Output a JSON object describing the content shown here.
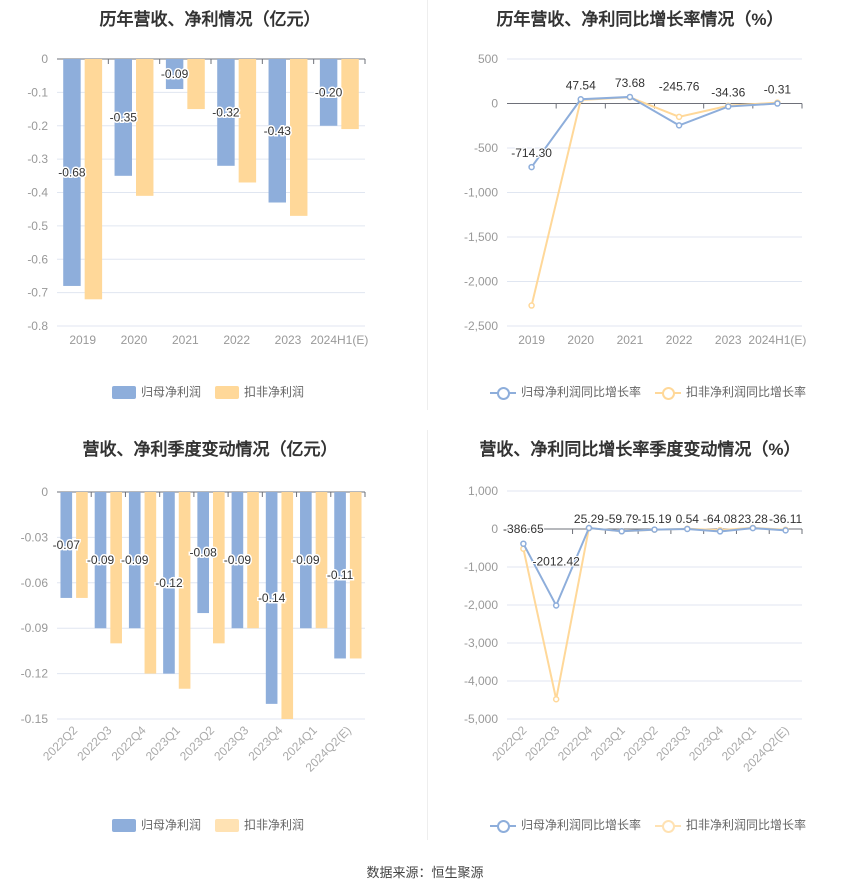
{
  "colors": {
    "blue": "#8eaedb",
    "orange": "#ffd899"
  },
  "footer": "数据来源：恒生聚源",
  "chart_data": [
    {
      "type": "bar",
      "title": "历年营收、净利情况（亿元）",
      "categories": [
        "2019",
        "2020",
        "2021",
        "2022",
        "2023",
        "2024H1(E)"
      ],
      "series": [
        {
          "name": "归母净利润",
          "values": [
            -0.68,
            -0.35,
            -0.09,
            -0.32,
            -0.43,
            -0.2
          ],
          "labels": [
            "-0.68",
            "-0.35",
            "-0.09",
            "-0.32",
            "-0.43",
            "-0.20"
          ]
        },
        {
          "name": "扣非净利润",
          "values": [
            -0.72,
            -0.41,
            -0.15,
            -0.37,
            -0.47,
            -0.21
          ]
        }
      ],
      "ylim": [
        -0.8,
        0
      ],
      "yticks": [
        "0",
        "-0.1",
        "-0.2",
        "-0.3",
        "-0.4",
        "-0.5",
        "-0.6",
        "-0.7",
        "-0.8"
      ],
      "legend": "bottom"
    },
    {
      "type": "line",
      "title": "历年营收、净利同比增长率情况（%）",
      "categories": [
        "2019",
        "2020",
        "2021",
        "2022",
        "2023",
        "2024H1(E)"
      ],
      "series": [
        {
          "name": "归母净利润同比增长率",
          "values": [
            -714.3,
            47.54,
            73.68,
            -245.76,
            -34.36,
            -0.31
          ],
          "labels": [
            "-714.30",
            "47.54",
            "73.68",
            "-245.76",
            "-34.36",
            "-0.31"
          ]
        },
        {
          "name": "扣非净利润同比增长率",
          "values": [
            -2270,
            40,
            70,
            -150,
            -25,
            10
          ]
        }
      ],
      "ylim": [
        -2500,
        500
      ],
      "yticks": [
        "500",
        "0",
        "-500",
        "-1,000",
        "-1,500",
        "-2,000",
        "-2,500"
      ],
      "legend": "bottom"
    },
    {
      "type": "bar",
      "title": "营收、净利季度变动情况（亿元）",
      "categories": [
        "2022Q2",
        "2022Q3",
        "2022Q4",
        "2023Q1",
        "2023Q2",
        "2023Q3",
        "2023Q4",
        "2024Q1",
        "2024Q2(E)"
      ],
      "series": [
        {
          "name": "归母净利润",
          "values": [
            -0.07,
            -0.09,
            -0.09,
            -0.12,
            -0.08,
            -0.09,
            -0.14,
            -0.09,
            -0.11
          ],
          "labels": [
            "-0.07",
            "-0.09",
            "-0.09",
            "-0.12",
            "-0.08",
            "-0.09",
            "-0.14",
            "-0.09",
            "-0.11"
          ]
        },
        {
          "name": "扣非净利润",
          "values": [
            -0.07,
            -0.1,
            -0.12,
            -0.13,
            -0.1,
            -0.09,
            -0.15,
            -0.09,
            -0.11
          ]
        }
      ],
      "ylim": [
        -0.15,
        0
      ],
      "yticks": [
        "0",
        "-0.03",
        "-0.06",
        "-0.09",
        "-0.12",
        "-0.15"
      ],
      "legend": "bottom"
    },
    {
      "type": "line",
      "title": "营收、净利同比增长率季度变动情况（%）",
      "categories": [
        "2022Q2",
        "2022Q3",
        "2022Q4",
        "2023Q1",
        "2023Q2",
        "2023Q3",
        "2023Q4",
        "2024Q1",
        "2024Q2(E)"
      ],
      "series": [
        {
          "name": "归母净利润同比增长率",
          "values": [
            -386.65,
            -2012.42,
            25.29,
            -59.79,
            -15.19,
            0.54,
            -64.08,
            23.28,
            -36.11
          ],
          "labels": [
            "-386.65",
            "-2012.42",
            "25.29",
            "-59.79",
            "-15.19",
            "0.54",
            "-64.08",
            "23.28",
            "-36.11"
          ]
        },
        {
          "name": "扣非净利润同比增长率",
          "values": [
            -520,
            -4480,
            25,
            -60,
            -20,
            5,
            -30,
            30,
            -20
          ]
        }
      ],
      "ylim": [
        -5000,
        1000
      ],
      "yticks": [
        "1,000",
        "0",
        "-1,000",
        "-2,000",
        "-3,000",
        "-4,000",
        "-5,000"
      ],
      "legend": "bottom"
    }
  ]
}
